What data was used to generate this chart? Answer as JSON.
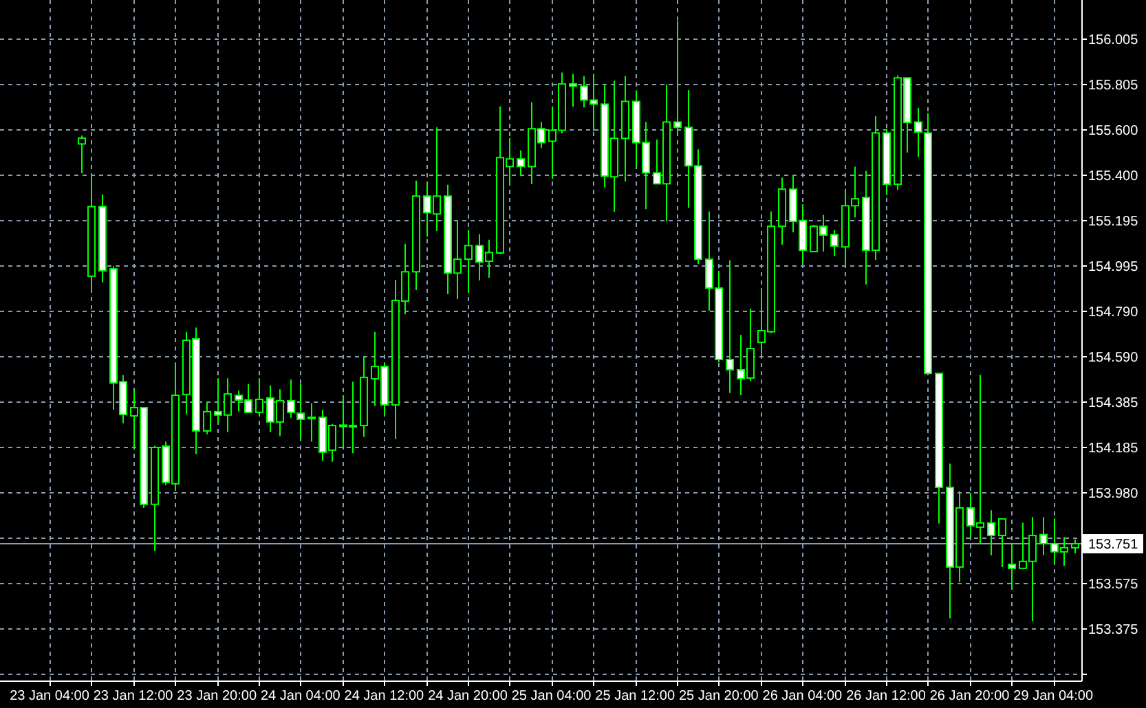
{
  "chart_data": {
    "type": "candlestick",
    "categories": [
      "23 Jan 04:00",
      null,
      null,
      null,
      null,
      null,
      null,
      null,
      "23 Jan 12:00",
      null,
      null,
      null,
      null,
      null,
      null,
      null,
      "23 Jan 20:00",
      null,
      null,
      null,
      null,
      null,
      null,
      null,
      "24 Jan 04:00",
      null,
      null,
      null,
      null,
      null,
      null,
      null,
      "24 Jan 12:00",
      null,
      null,
      null,
      null,
      null,
      null,
      null,
      "24 Jan 20:00",
      null,
      null,
      null,
      null,
      null,
      null,
      null,
      "25 Jan 04:00",
      null,
      null,
      null,
      null,
      null,
      null,
      null,
      "25 Jan 12:00",
      null,
      null,
      null,
      null,
      null,
      null,
      null,
      "25 Jan 20:00",
      null,
      null,
      null,
      null,
      null,
      null,
      null,
      "26 Jan 04:00",
      null,
      null,
      null,
      null,
      null,
      null,
      null,
      "26 Jan 12:00",
      null,
      null,
      null,
      null,
      null,
      null,
      null,
      "26 Jan 20:00",
      null,
      null,
      null,
      null,
      null,
      null,
      null,
      "29 Jan 04:00",
      null,
      null
    ],
    "ohlc": [
      null,
      null,
      null,
      [
        155.537,
        155.574,
        155.406,
        155.563
      ],
      [
        154.946,
        155.4,
        154.878,
        155.257
      ],
      [
        155.257,
        155.312,
        154.919,
        154.97
      ],
      [
        154.979,
        154.991,
        154.35,
        154.469
      ],
      [
        154.475,
        154.504,
        154.289,
        154.328
      ],
      [
        154.322,
        154.439,
        154.172,
        154.359
      ],
      [
        154.359,
        154.359,
        153.911,
        153.927
      ],
      [
        153.927,
        154.189,
        153.718,
        154.181
      ],
      [
        154.187,
        154.207,
        154.013,
        154.025
      ],
      [
        154.019,
        154.561,
        153.993,
        154.414
      ],
      [
        154.418,
        154.698,
        154.33,
        154.66
      ],
      [
        154.666,
        154.717,
        154.152,
        154.255
      ],
      [
        154.255,
        154.385,
        154.24,
        154.341
      ],
      [
        154.341,
        154.49,
        154.285,
        154.326
      ],
      [
        154.326,
        154.49,
        154.25,
        154.42
      ],
      [
        154.414,
        154.434,
        154.342,
        154.393
      ],
      [
        154.393,
        154.465,
        154.336,
        154.338
      ],
      [
        154.338,
        154.49,
        154.326,
        154.396
      ],
      [
        154.402,
        154.459,
        154.25,
        154.295
      ],
      [
        154.295,
        154.441,
        154.232,
        154.39
      ],
      [
        154.39,
        154.484,
        154.314,
        154.338
      ],
      [
        154.334,
        154.465,
        154.218,
        154.307
      ],
      [
        154.316,
        154.379,
        154.207,
        154.31
      ],
      [
        154.316,
        154.349,
        154.121,
        154.16
      ],
      [
        154.169,
        154.285,
        154.117,
        154.279
      ],
      [
        154.279,
        154.414,
        154.179,
        154.281
      ],
      [
        154.279,
        154.475,
        154.156,
        154.279
      ],
      [
        154.279,
        154.588,
        154.228,
        154.494
      ],
      [
        154.488,
        154.698,
        154.367,
        154.543
      ],
      [
        154.543,
        154.561,
        154.326,
        154.371
      ],
      [
        154.371,
        154.93,
        154.218,
        154.838
      ],
      [
        154.835,
        155.091,
        154.776,
        154.966
      ],
      [
        154.966,
        155.373,
        154.884,
        155.304
      ],
      [
        155.304,
        155.365,
        155.123,
        155.23
      ],
      [
        155.224,
        155.611,
        155.148,
        155.304
      ],
      [
        155.304,
        155.355,
        154.866,
        154.96
      ],
      [
        154.96,
        155.195,
        154.844,
        155.022
      ],
      [
        155.022,
        155.152,
        154.872,
        155.083
      ],
      [
        155.083,
        155.134,
        154.927,
        155.009
      ],
      [
        155.013,
        155.109,
        154.939,
        155.052
      ],
      [
        155.05,
        155.705,
        155.044,
        155.476
      ],
      [
        155.436,
        155.563,
        155.357,
        155.47
      ],
      [
        155.47,
        155.508,
        155.393,
        155.436
      ],
      [
        155.436,
        155.723,
        155.357,
        155.605
      ],
      [
        155.605,
        155.635,
        155.519,
        155.543
      ],
      [
        155.549,
        155.705,
        155.381,
        155.598
      ],
      [
        155.598,
        155.856,
        155.584,
        155.805
      ],
      [
        155.805,
        155.85,
        155.703,
        155.795
      ],
      [
        155.795,
        155.84,
        155.7,
        155.733
      ],
      [
        155.733,
        155.85,
        155.594,
        155.715
      ],
      [
        155.715,
        155.803,
        155.343,
        155.393
      ],
      [
        155.39,
        155.819,
        155.234,
        155.562
      ],
      [
        155.562,
        155.84,
        155.369,
        155.727
      ],
      [
        155.727,
        155.776,
        155.43,
        155.543
      ],
      [
        155.543,
        155.635,
        155.246,
        155.408
      ],
      [
        155.408,
        155.557,
        155.357,
        155.359
      ],
      [
        155.359,
        155.803,
        155.191,
        155.635
      ],
      [
        155.635,
        156.085,
        155.584,
        155.611
      ],
      [
        155.611,
        155.778,
        155.252,
        155.439
      ],
      [
        155.439,
        155.513,
        155.001,
        155.022
      ],
      [
        155.022,
        155.236,
        154.792,
        154.893
      ],
      [
        154.893,
        154.97,
        154.561,
        154.574
      ],
      [
        154.574,
        155.017,
        154.424,
        154.528
      ],
      [
        154.528,
        154.684,
        154.414,
        154.488
      ],
      [
        154.491,
        154.801,
        154.479,
        154.623
      ],
      [
        154.651,
        154.893,
        154.588,
        154.703
      ],
      [
        154.698,
        155.236,
        154.692,
        155.169
      ],
      [
        155.169,
        155.386,
        155.087,
        155.335
      ],
      [
        155.335,
        155.4,
        155.142,
        155.191
      ],
      [
        155.195,
        155.267,
        155.001,
        155.062
      ],
      [
        155.056,
        155.175,
        155.056,
        155.169
      ],
      [
        155.169,
        155.22,
        155.056,
        155.13
      ],
      [
        155.132,
        155.152,
        155.036,
        155.081
      ],
      [
        155.077,
        155.336,
        154.995,
        155.261
      ],
      [
        155.261,
        155.435,
        155.209,
        155.292
      ],
      [
        155.298,
        155.416,
        154.909,
        155.062
      ],
      [
        155.062,
        155.662,
        155.019,
        155.586
      ],
      [
        155.586,
        155.605,
        155.308,
        155.357
      ],
      [
        155.357,
        155.844,
        155.332,
        155.832
      ],
      [
        155.832,
        155.832,
        155.498,
        155.633
      ],
      [
        155.635,
        155.698,
        155.479,
        155.59
      ],
      [
        155.586,
        155.674,
        154.512,
        154.512
      ],
      [
        154.512,
        154.512,
        153.841,
        154.003
      ],
      [
        154.003,
        154.109,
        153.418,
        153.647
      ],
      [
        153.647,
        153.985,
        153.58,
        153.911
      ],
      [
        153.911,
        153.979,
        153.778,
        153.831
      ],
      [
        153.825,
        154.506,
        153.749,
        153.844
      ],
      [
        153.844,
        153.901,
        153.7,
        153.788
      ],
      [
        153.788,
        153.862,
        153.647,
        153.862
      ],
      [
        153.659,
        153.755,
        153.553,
        153.641
      ],
      [
        153.641,
        153.845,
        153.641,
        153.672
      ],
      [
        153.672,
        153.87,
        153.405,
        153.788
      ],
      [
        153.792,
        153.87,
        153.7,
        153.751
      ],
      [
        153.751,
        153.864,
        153.663,
        153.715
      ],
      [
        153.715,
        153.78,
        153.653,
        153.733
      ],
      [
        153.733,
        153.77,
        153.708,
        153.751
      ]
    ],
    "color": "#00ff00",
    "ylim": [
      153.14,
      156.18
    ],
    "yticks": [
      156.005,
      155.805,
      {
        "value": 155.6,
        "label": "155.600"
      },
      {
        "value": 155.4,
        "label": "155.400"
      },
      155.195,
      154.995,
      {
        "value": 154.79,
        "label": "154.790"
      },
      {
        "value": 154.59,
        "label": "154.590"
      },
      154.385,
      154.185,
      {
        "value": 153.98,
        "label": "153.980"
      },
      {
        "value": 153.78,
        "label": null
      },
      153.575,
      153.375,
      {
        "value": 153.17,
        "label": null
      }
    ],
    "grid": true,
    "ref_lines": [
      {
        "axis": "y",
        "value": 153.751,
        "label": "153.751",
        "color": "#8a9bb0"
      }
    ]
  }
}
